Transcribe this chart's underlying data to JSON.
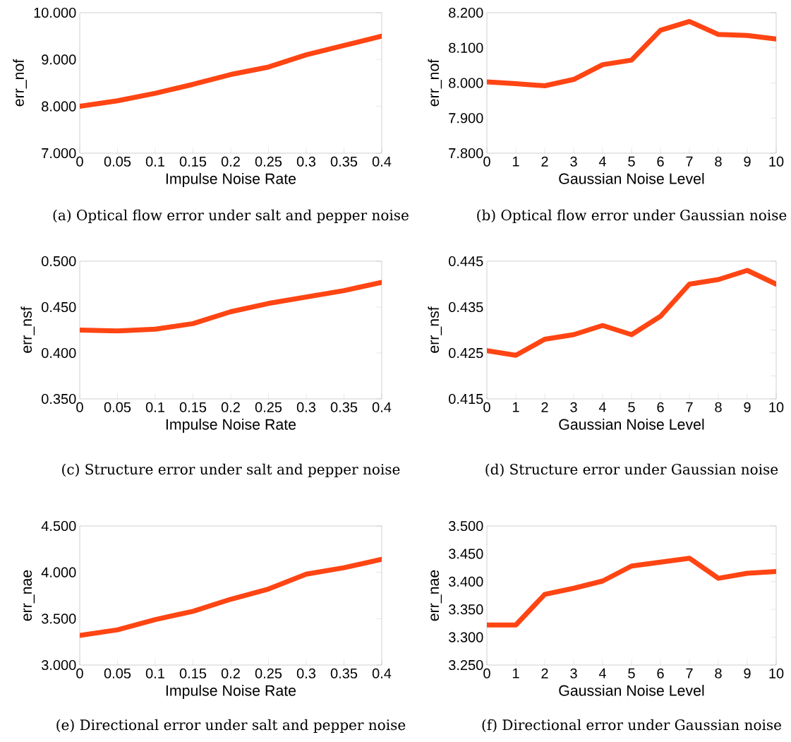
{
  "chart_data": [
    {
      "type": "line",
      "title": "(a) Optical flow error under salt and pepper noise",
      "xlabel": "Impulse Noise Rate",
      "ylabel": "err_nof",
      "x": [
        0,
        0.05,
        0.1,
        0.15,
        0.2,
        0.25,
        0.3,
        0.35,
        0.4
      ],
      "series": [
        {
          "color": "#ff4513",
          "values": [
            8.0,
            8.12,
            8.28,
            8.47,
            8.68,
            8.84,
            9.1,
            9.3,
            9.5
          ]
        }
      ],
      "xlim": [
        0,
        0.4
      ],
      "ylim": [
        7,
        10
      ],
      "xticks": [
        0,
        0.05,
        0.1,
        0.15,
        0.2,
        0.25,
        0.3,
        0.35,
        0.4
      ],
      "yticks": [
        {
          "value": 7,
          "label": "7.000"
        },
        {
          "value": 8,
          "label": "8.000"
        },
        {
          "value": 9,
          "label": "9.000"
        },
        {
          "value": 10,
          "label": "10.000"
        }
      ],
      "grid": false
    },
    {
      "type": "line",
      "title": "(b) Optical flow error under Gaussian noise",
      "xlabel": "Gaussian Noise Level",
      "ylabel": "err_nof",
      "x": [
        0,
        1,
        2,
        3,
        4,
        5,
        6,
        7,
        8,
        9,
        10
      ],
      "series": [
        {
          "color": "#ff4513",
          "values": [
            8.003,
            7.998,
            7.992,
            8.01,
            8.052,
            8.065,
            8.15,
            8.175,
            8.138,
            8.135,
            8.125
          ]
        }
      ],
      "xlim": [
        0,
        10
      ],
      "ylim": [
        7.8,
        8.2
      ],
      "xticks": [
        0,
        1,
        2,
        3,
        4,
        5,
        6,
        7,
        8,
        9,
        10
      ],
      "yticks": [
        {
          "value": 7.8,
          "label": "7.800"
        },
        {
          "value": 7.9,
          "label": "7.900"
        },
        {
          "value": 8.0,
          "label": "8.000"
        },
        {
          "value": 8.1,
          "label": "8.100"
        },
        {
          "value": 8.2,
          "label": "8.200"
        }
      ],
      "grid": false
    },
    {
      "type": "line",
      "title": "(c) Structure error under salt and pepper noise",
      "xlabel": "Impulse Noise Rate",
      "ylabel": "err_nsf",
      "x": [
        0,
        0.05,
        0.1,
        0.15,
        0.2,
        0.25,
        0.3,
        0.35,
        0.4
      ],
      "series": [
        {
          "color": "#ff4513",
          "values": [
            0.425,
            0.424,
            0.426,
            0.432,
            0.445,
            0.454,
            0.461,
            0.468,
            0.477
          ]
        }
      ],
      "xlim": [
        0,
        0.4
      ],
      "ylim": [
        0.35,
        0.5
      ],
      "xticks": [
        0,
        0.05,
        0.1,
        0.15,
        0.2,
        0.25,
        0.3,
        0.35,
        0.4
      ],
      "yticks": [
        {
          "value": 0.35,
          "label": "0.350"
        },
        {
          "value": 0.4,
          "label": "0.400"
        },
        {
          "value": 0.45,
          "label": "0.450"
        },
        {
          "value": 0.5,
          "label": "0.500"
        }
      ],
      "grid": false
    },
    {
      "type": "line",
      "title": "(d) Structure error under Gaussian noise",
      "xlabel": "Gaussian Noise Level",
      "ylabel": "err_nsf",
      "x": [
        0,
        1,
        2,
        3,
        4,
        5,
        6,
        7,
        8,
        9,
        10
      ],
      "series": [
        {
          "color": "#ff4513",
          "values": [
            0.4255,
            0.4245,
            0.428,
            0.429,
            0.431,
            0.429,
            0.433,
            0.44,
            0.441,
            0.443,
            0.44
          ]
        }
      ],
      "xlim": [
        0,
        10
      ],
      "ylim": [
        0.415,
        0.445
      ],
      "xticks": [
        0,
        1,
        2,
        3,
        4,
        5,
        6,
        7,
        8,
        9,
        10
      ],
      "yticks": [
        {
          "value": 0.415,
          "label": "0.415"
        },
        {
          "value": 0.42,
          "label": null
        },
        {
          "value": 0.425,
          "label": "0.425"
        },
        {
          "value": 0.43,
          "label": null
        },
        {
          "value": 0.435,
          "label": "0.435"
        },
        {
          "value": 0.44,
          "label": null
        },
        {
          "value": 0.445,
          "label": "0.445"
        }
      ],
      "grid": false
    },
    {
      "type": "line",
      "title": "(e) Directional error under salt and pepper noise",
      "xlabel": "Impulse Noise Rate",
      "ylabel": "err_nae",
      "x": [
        0,
        0.05,
        0.1,
        0.15,
        0.2,
        0.25,
        0.3,
        0.35,
        0.4
      ],
      "series": [
        {
          "color": "#ff4513",
          "values": [
            3.32,
            3.38,
            3.49,
            3.58,
            3.71,
            3.82,
            3.98,
            4.05,
            4.14
          ]
        }
      ],
      "xlim": [
        0,
        0.4
      ],
      "ylim": [
        3,
        4.5
      ],
      "xticks": [
        0,
        0.05,
        0.1,
        0.15,
        0.2,
        0.25,
        0.3,
        0.35,
        0.4
      ],
      "yticks": [
        {
          "value": 3,
          "label": "3.000"
        },
        {
          "value": 3.5,
          "label": "3.500"
        },
        {
          "value": 4,
          "label": "4.000"
        },
        {
          "value": 4.5,
          "label": "4.500"
        }
      ],
      "grid": false
    },
    {
      "type": "line",
      "title": "(f) Directional error under Gaussian noise",
      "xlabel": "Gaussian Noise Level",
      "ylabel": "err_nae",
      "x": [
        0,
        1,
        2,
        3,
        4,
        5,
        6,
        7,
        8,
        9,
        10
      ],
      "series": [
        {
          "color": "#ff4513",
          "values": [
            3.322,
            3.322,
            3.377,
            3.388,
            3.401,
            3.428,
            3.435,
            3.442,
            3.406,
            3.415,
            3.418
          ]
        }
      ],
      "xlim": [
        0,
        10
      ],
      "ylim": [
        3.25,
        3.5
      ],
      "xticks": [
        0,
        1,
        2,
        3,
        4,
        5,
        6,
        7,
        8,
        9,
        10
      ],
      "yticks": [
        {
          "value": 3.25,
          "label": "3.250"
        },
        {
          "value": 3.3,
          "label": "3.300"
        },
        {
          "value": 3.35,
          "label": "3.350"
        },
        {
          "value": 3.4,
          "label": "3.400"
        },
        {
          "value": 3.45,
          "label": "3.450"
        },
        {
          "value": 3.5,
          "label": "3.500"
        }
      ],
      "grid": false
    }
  ]
}
